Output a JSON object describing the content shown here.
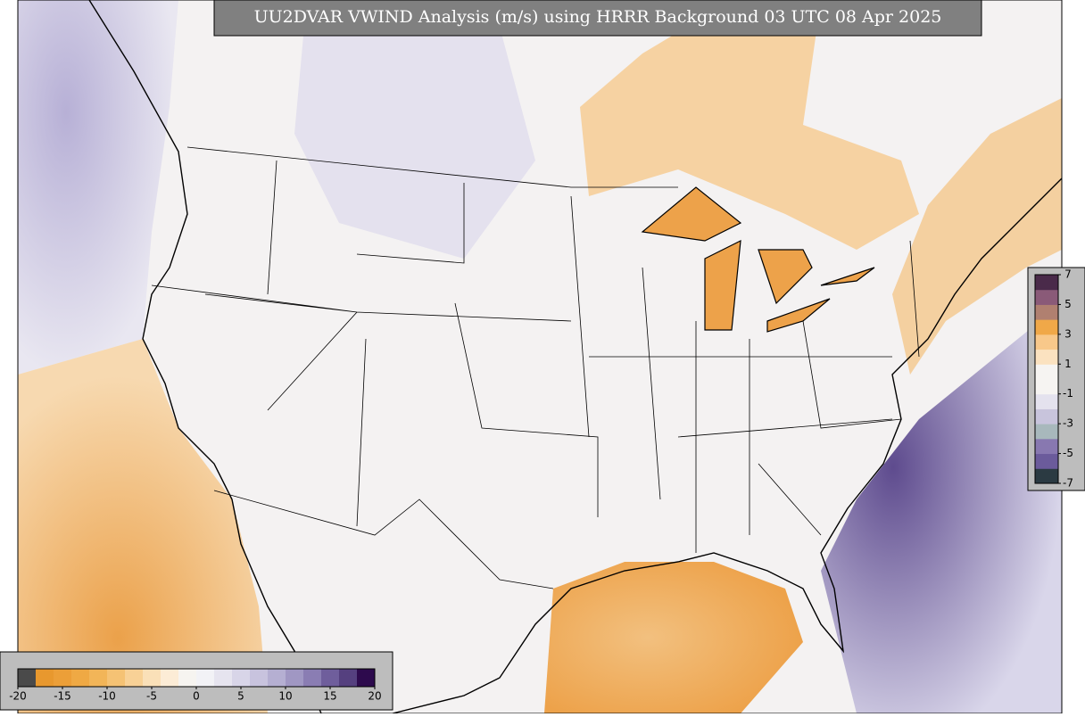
{
  "title": "UU2DVAR VWIND Analysis (m/s) using HRRR Background 03 UTC 08 Apr 2025",
  "colorbar_horizontal": {
    "range": [
      -20,
      20
    ],
    "ticks": [
      -20,
      -15,
      -10,
      -5,
      0,
      5,
      10,
      15,
      20
    ],
    "colors": [
      "#4a4a4a",
      "#e8982e",
      "#ec9f38",
      "#efa944",
      "#f2b558",
      "#f5c274",
      "#f8d196",
      "#fae0b8",
      "#fcecd6",
      "#f6f4f0",
      "#f2f2f6",
      "#e6e4ef",
      "#d8d5e8",
      "#c8c3de",
      "#b5afd2",
      "#a097c3",
      "#8a7db3",
      "#6f5e9c",
      "#55407f",
      "#2d0a4d"
    ]
  },
  "colorbar_vertical": {
    "range": [
      -7,
      7
    ],
    "ticks": [
      7,
      5,
      3,
      1,
      -1,
      -3,
      -5,
      -7
    ],
    "colors": [
      "#2b3a42",
      "#6b5b9b",
      "#8878b0",
      "#a8b8bc",
      "#c8c4dc",
      "#e4e2ee",
      "#f6f4f2",
      "#f6f4f2",
      "#fbe2c0",
      "#f8c88a",
      "#f0a848",
      "#b08070",
      "#8a5a78",
      "#4a2a4a"
    ]
  }
}
